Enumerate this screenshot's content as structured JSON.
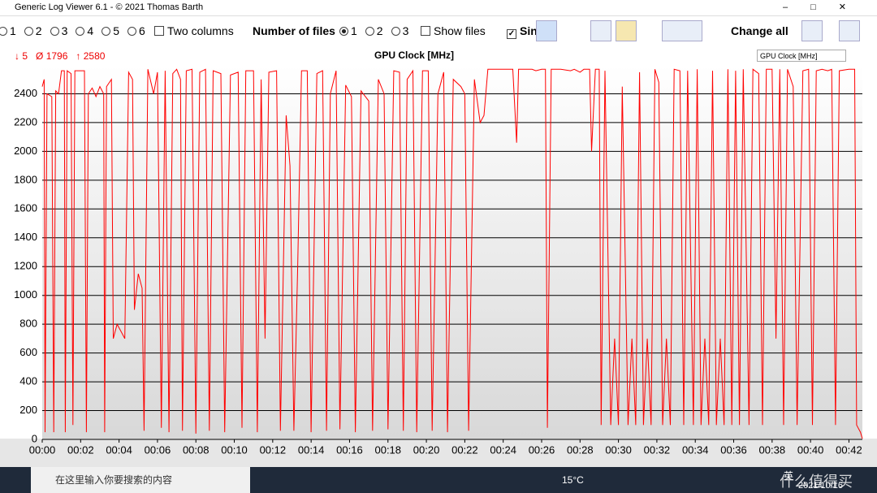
{
  "window": {
    "title": "Generic Log Viewer 6.1 - © 2021 Thomas Barth"
  },
  "toolbar": {
    "file_radios": [
      "1",
      "2",
      "3",
      "4",
      "5",
      "6"
    ],
    "two_columns": "Two columns",
    "number_of_files": "Number of files",
    "count_radios": [
      "1",
      "2",
      "3"
    ],
    "show_files": "Show files",
    "sync": "Sin",
    "change_all": "Change all"
  },
  "stats": {
    "min": "↓ 5",
    "avg": "Ø 1796",
    "max": "↑ 2580"
  },
  "selector": "GPU Clock [MHz]",
  "taskbar": {
    "search": "在这里输入你要搜索的内容",
    "weather": "15°C",
    "ime": "英",
    "date": "2021/10/16",
    "watermark": "什么值得买"
  },
  "chart_data": {
    "type": "line",
    "title": "GPU Clock [MHz]",
    "x": [
      0.0,
      0.1,
      0.15,
      0.25,
      0.5,
      0.6,
      0.7,
      0.85,
      1.0,
      1.15,
      1.2,
      1.3,
      1.5,
      1.6,
      1.7,
      2.0,
      2.2,
      2.3,
      2.4,
      2.6,
      2.8,
      3.0,
      3.2,
      3.25,
      3.35,
      3.6,
      3.7,
      3.9,
      4.1,
      4.3,
      4.5,
      4.7,
      4.8,
      5.0,
      5.2,
      5.3,
      5.5,
      5.8,
      6.0,
      6.2,
      6.4,
      6.6,
      6.8,
      7.0,
      7.2,
      7.3,
      7.5,
      7.8,
      8.0,
      8.2,
      8.5,
      8.7,
      8.9,
      9.3,
      9.5,
      9.8,
      10.2,
      10.4,
      10.6,
      11.0,
      11.2,
      11.4,
      11.6,
      11.8,
      12.2,
      12.4,
      12.7,
      12.9,
      13.1,
      13.3,
      13.5,
      13.8,
      14.0,
      14.3,
      14.6,
      14.8,
      15.0,
      15.3,
      15.5,
      15.8,
      16.1,
      16.3,
      16.6,
      17.0,
      17.2,
      17.5,
      17.8,
      18.0,
      18.3,
      18.6,
      18.8,
      19.0,
      19.3,
      19.5,
      19.8,
      20.1,
      20.3,
      20.6,
      20.9,
      21.1,
      21.4,
      21.8,
      22.0,
      22.2,
      22.5,
      22.8,
      23.0,
      23.2,
      24.0,
      24.5,
      24.7,
      24.8,
      25.5,
      25.7,
      26.0,
      26.2,
      26.3,
      26.5,
      27.0,
      27.5,
      27.7,
      28.0,
      28.2,
      28.5,
      28.6,
      28.8,
      29.0,
      29.1,
      29.3,
      29.6,
      29.8,
      30.0,
      30.2,
      30.5,
      30.7,
      30.9,
      31.1,
      31.3,
      31.5,
      31.7,
      31.9,
      32.1,
      32.3,
      32.5,
      32.7,
      32.9,
      33.2,
      33.4,
      33.6,
      33.9,
      34.1,
      34.3,
      34.5,
      34.7,
      34.9,
      35.1,
      35.3,
      35.5,
      35.7,
      35.9,
      36.1,
      36.3,
      36.5,
      36.8,
      37.0,
      37.3,
      37.5,
      37.7,
      38.0,
      38.2,
      38.4,
      38.6,
      38.8,
      39.1,
      39.3,
      39.6,
      39.9,
      40.1,
      40.3,
      40.6,
      40.9,
      41.1,
      41.3,
      41.5,
      42.0,
      42.3,
      42.4,
      42.6,
      42.7
    ],
    "series": [
      {
        "name": "GPU Clock [MHz]",
        "color": "#ff0000",
        "values": [
          2450,
          2500,
          50,
          2400,
          2380,
          50,
          2420,
          2400,
          2560,
          2560,
          50,
          2560,
          2540,
          100,
          2560,
          2560,
          2560,
          50,
          2400,
          2440,
          2380,
          2450,
          2400,
          50,
          2450,
          2500,
          700,
          800,
          750,
          700,
          2550,
          2500,
          900,
          1150,
          1050,
          60,
          2570,
          2400,
          2550,
          80,
          2560,
          50,
          2540,
          2570,
          2500,
          60,
          2560,
          2570,
          40,
          2550,
          2570,
          60,
          2560,
          2540,
          50,
          2530,
          2550,
          80,
          2560,
          2560,
          50,
          2500,
          700,
          2550,
          2560,
          60,
          2250,
          1900,
          60,
          1200,
          2560,
          2560,
          50,
          2540,
          2560,
          60,
          2400,
          2560,
          70,
          2460,
          2380,
          50,
          2420,
          2350,
          60,
          2500,
          2400,
          70,
          2560,
          2550,
          60,
          2500,
          2560,
          50,
          2560,
          2560,
          60,
          2400,
          2550,
          50,
          2500,
          2450,
          2400,
          60,
          2500,
          2200,
          2250,
          2570,
          2570,
          2570,
          2060,
          2570,
          2570,
          2560,
          2570,
          2570,
          80,
          2570,
          2570,
          2560,
          2570,
          2550,
          2570,
          2570,
          2000,
          2570,
          2570,
          100,
          2560,
          100,
          700,
          100,
          2450,
          100,
          700,
          100,
          2550,
          100,
          700,
          100,
          2570,
          2480,
          100,
          700,
          100,
          2570,
          2560,
          100,
          2560,
          100,
          2570,
          100,
          700,
          100,
          2560,
          100,
          700,
          100,
          2570,
          100,
          2560,
          100,
          2570,
          100,
          2570,
          2540,
          100,
          2570,
          2570,
          700,
          2570,
          100,
          2570,
          2450,
          100,
          2560,
          2570,
          100,
          2560,
          2570,
          2560,
          2570,
          100,
          2560,
          2570,
          2570,
          100,
          50,
          5
        ]
      }
    ],
    "xlim": [
      0,
      42.7
    ],
    "ylim": [
      0,
      2600
    ],
    "xticks": [
      {
        "value": 0,
        "label": "00:00"
      },
      {
        "value": 2,
        "label": "00:02"
      },
      {
        "value": 4,
        "label": "00:04"
      },
      {
        "value": 6,
        "label": "00:06"
      },
      {
        "value": 8,
        "label": "00:08"
      },
      {
        "value": 10,
        "label": "00:10"
      },
      {
        "value": 12,
        "label": "00:12"
      },
      {
        "value": 14,
        "label": "00:14"
      },
      {
        "value": 16,
        "label": "00:16"
      },
      {
        "value": 18,
        "label": "00:18"
      },
      {
        "value": 20,
        "label": "00:20"
      },
      {
        "value": 22,
        "label": "00:22"
      },
      {
        "value": 24,
        "label": "00:24"
      },
      {
        "value": 26,
        "label": "00:26"
      },
      {
        "value": 28,
        "label": "00:28"
      },
      {
        "value": 30,
        "label": "00:30"
      },
      {
        "value": 32,
        "label": "00:32"
      },
      {
        "value": 34,
        "label": "00:34"
      },
      {
        "value": 36,
        "label": "00:36"
      },
      {
        "value": 38,
        "label": "00:38"
      },
      {
        "value": 40,
        "label": "00:40"
      },
      {
        "value": 42,
        "label": "00:42"
      }
    ],
    "yticks": [
      0,
      200,
      400,
      600,
      800,
      1000,
      1200,
      1400,
      1600,
      1800,
      2000,
      2200,
      2400
    ],
    "grid": true
  }
}
